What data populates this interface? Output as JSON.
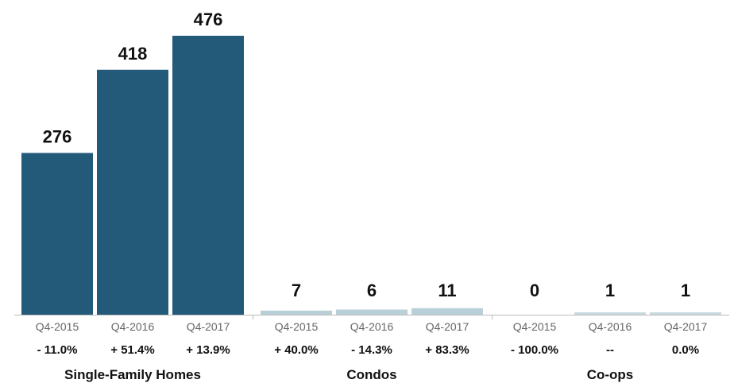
{
  "chart_data": {
    "type": "bar",
    "groups": [
      {
        "name": "Single-Family Homes",
        "color": "#235a79",
        "bars": [
          {
            "period": "Q4-2015",
            "value": 276,
            "label": "276",
            "change": "- 11.0%"
          },
          {
            "period": "Q4-2016",
            "value": 418,
            "label": "418",
            "change": "+ 51.4%"
          },
          {
            "period": "Q4-2017",
            "value": 476,
            "label": "476",
            "change": "+ 13.9%"
          }
        ]
      },
      {
        "name": "Condos",
        "color": "#b9d0d8",
        "bars": [
          {
            "period": "Q4-2015",
            "value": 7,
            "label": "7",
            "change": "+ 40.0%"
          },
          {
            "period": "Q4-2016",
            "value": 6,
            "label": "6",
            "change": "- 14.3%"
          },
          {
            "period": "Q4-2017",
            "value": 11,
            "label": "11",
            "change": "+ 83.3%"
          }
        ]
      },
      {
        "name": "Co-ops",
        "color": "#c9d9df",
        "bars": [
          {
            "period": "Q4-2015",
            "value": 0,
            "label": "0",
            "change": "- 100.0%"
          },
          {
            "period": "Q4-2016",
            "value": 1,
            "label": "1",
            "change": "--"
          },
          {
            "period": "Q4-2017",
            "value": 1,
            "label": "1",
            "change": "0.0%"
          }
        ]
      }
    ],
    "ylim": [
      0,
      476
    ],
    "grid": false,
    "legend": "none",
    "axis_color": "#bbbbbb"
  }
}
